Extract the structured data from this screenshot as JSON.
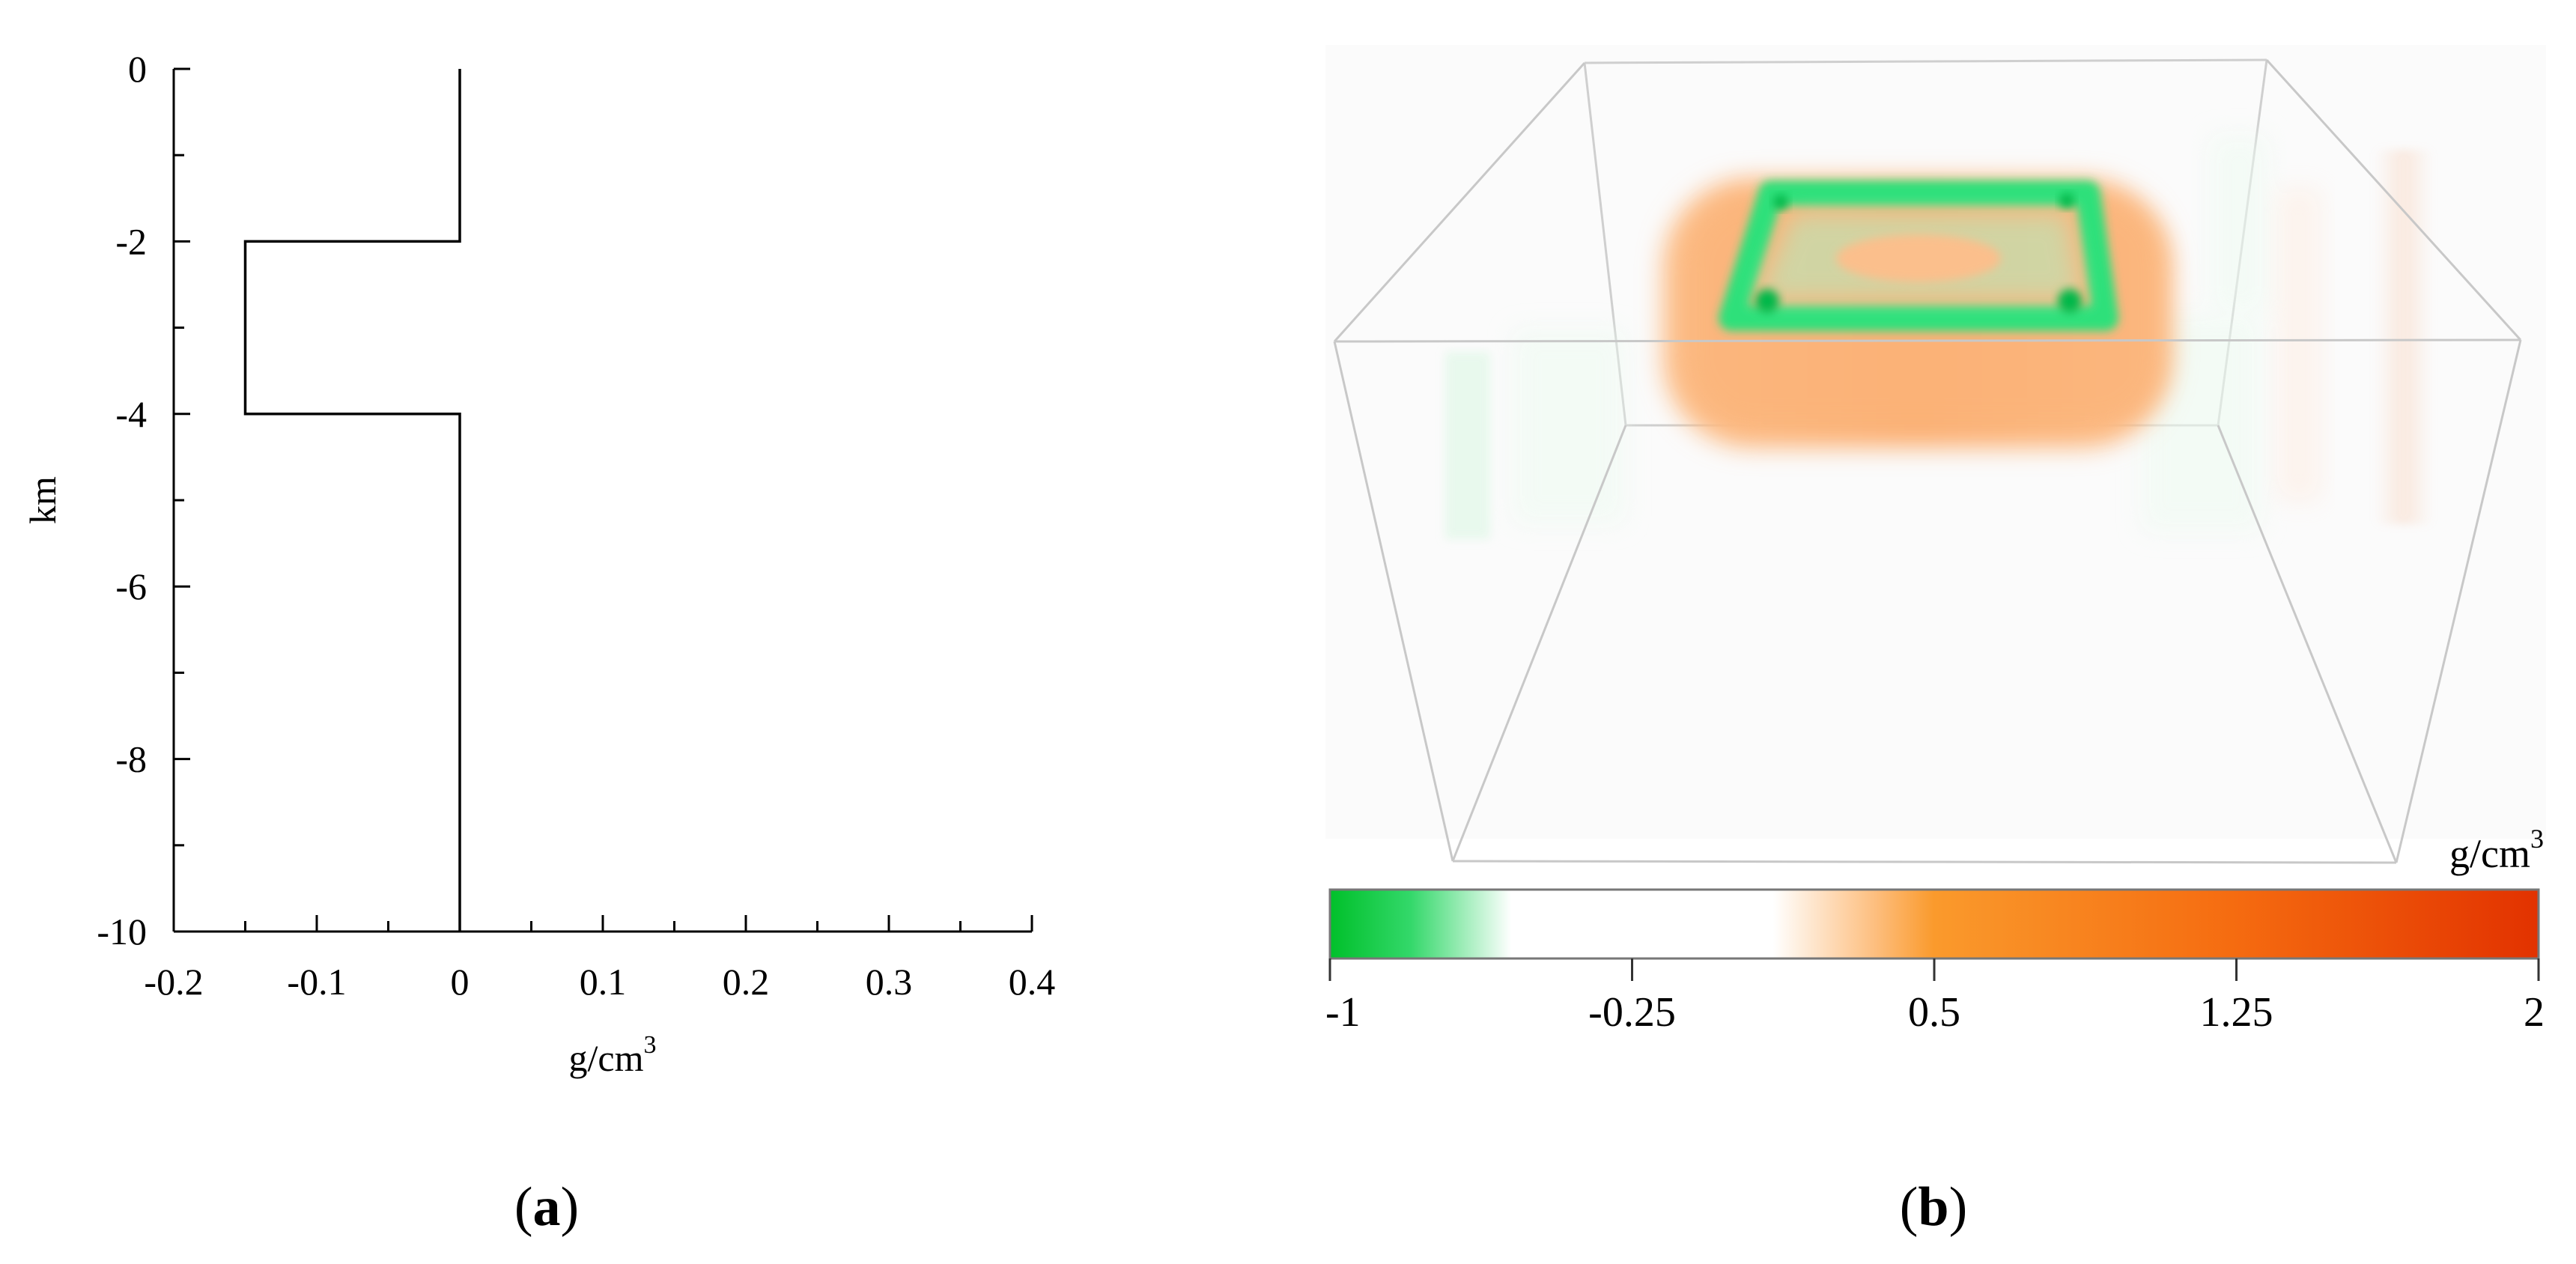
{
  "panels": {
    "a": {
      "label": "a"
    },
    "b": {
      "label": "b"
    }
  },
  "chart_data": [
    {
      "type": "line",
      "panel": "a",
      "xlabel": "g/cm",
      "xlabel_sup": "3",
      "ylabel": "km",
      "xlim": [
        -0.2,
        0.4
      ],
      "ylim": [
        -10,
        0
      ],
      "xticks": [
        -0.2,
        -0.1,
        0,
        0.1,
        0.2,
        0.3,
        0.4
      ],
      "yticks": [
        0,
        -2,
        -4,
        -6,
        -8,
        -10
      ],
      "grid": false,
      "series": [
        {
          "x": [
            0,
            0,
            -0.15,
            -0.15,
            0,
            0
          ],
          "y": [
            0,
            -2,
            -2,
            -4,
            -4,
            -10
          ]
        }
      ]
    },
    {
      "type": "heatmap",
      "panel": "b",
      "description_kind": "3d-volume-render",
      "colorbar": {
        "unit": "g/cm",
        "unit_sup": "3",
        "range": [
          -1,
          2
        ],
        "ticks": [
          -1,
          -0.25,
          0.5,
          1.25,
          2
        ],
        "tick_labels": [
          "-1",
          "-0.25",
          "0.5",
          "1.25",
          "2"
        ],
        "stops": [
          {
            "value": -1.0,
            "color": "#00c02a"
          },
          {
            "value": -0.8,
            "color": "#33d86a"
          },
          {
            "value": -0.55,
            "color": "#ffffff"
          },
          {
            "value": 0.1,
            "color": "#ffffff"
          },
          {
            "value": 0.35,
            "color": "#fdbf80"
          },
          {
            "value": 0.5,
            "color": "#fa9a2c"
          },
          {
            "value": 1.25,
            "color": "#f56b10"
          },
          {
            "value": 2.0,
            "color": "#e23200"
          }
        ]
      },
      "box_color": "#c8c8c8",
      "body_colors": {
        "positive": "#fcae6c",
        "negative": "#2fe07a"
      }
    }
  ]
}
